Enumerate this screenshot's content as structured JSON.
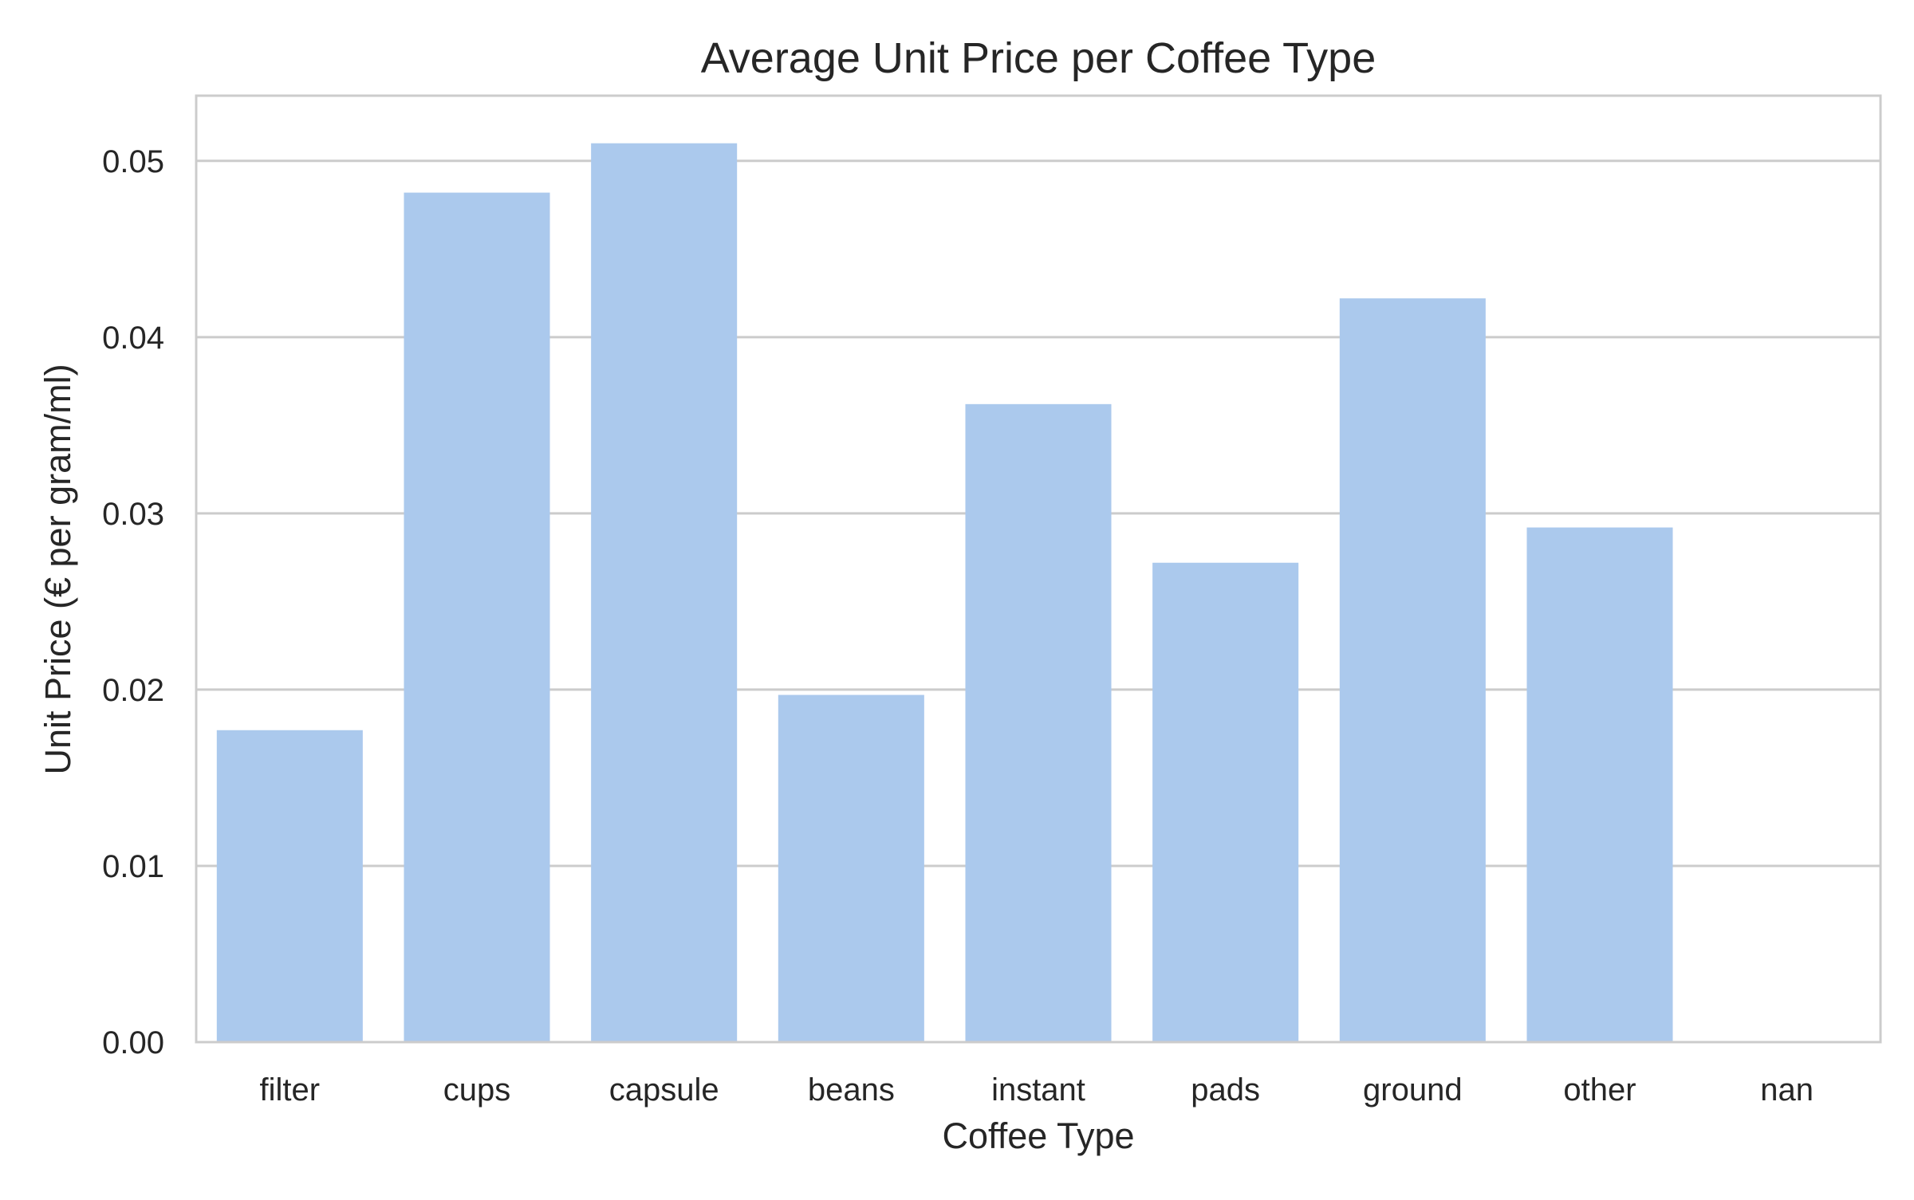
{
  "chart_data": {
    "type": "bar",
    "title": "Average Unit Price per Coffee Type",
    "xlabel": "Coffee Type",
    "ylabel": "Unit Price (€ per gram/ml)",
    "categories": [
      "filter",
      "cups",
      "capsule",
      "beans",
      "instant",
      "pads",
      "ground",
      "other",
      "nan"
    ],
    "values": [
      0.0177,
      0.0482,
      0.051,
      0.0197,
      0.0362,
      0.0272,
      0.0422,
      0.0292,
      0.0
    ],
    "ylim": [
      0,
      0.0537
    ],
    "yticks": [
      0.0,
      0.01,
      0.02,
      0.03,
      0.04,
      0.05
    ],
    "ytick_labels": [
      "0.00",
      "0.01",
      "0.02",
      "0.03",
      "0.04",
      "0.05"
    ],
    "grid": "horizontal",
    "bar_color": "#abc9ed",
    "grid_color": "#cccccc",
    "spine_color": "#cccccc",
    "text_color": "#262626"
  }
}
